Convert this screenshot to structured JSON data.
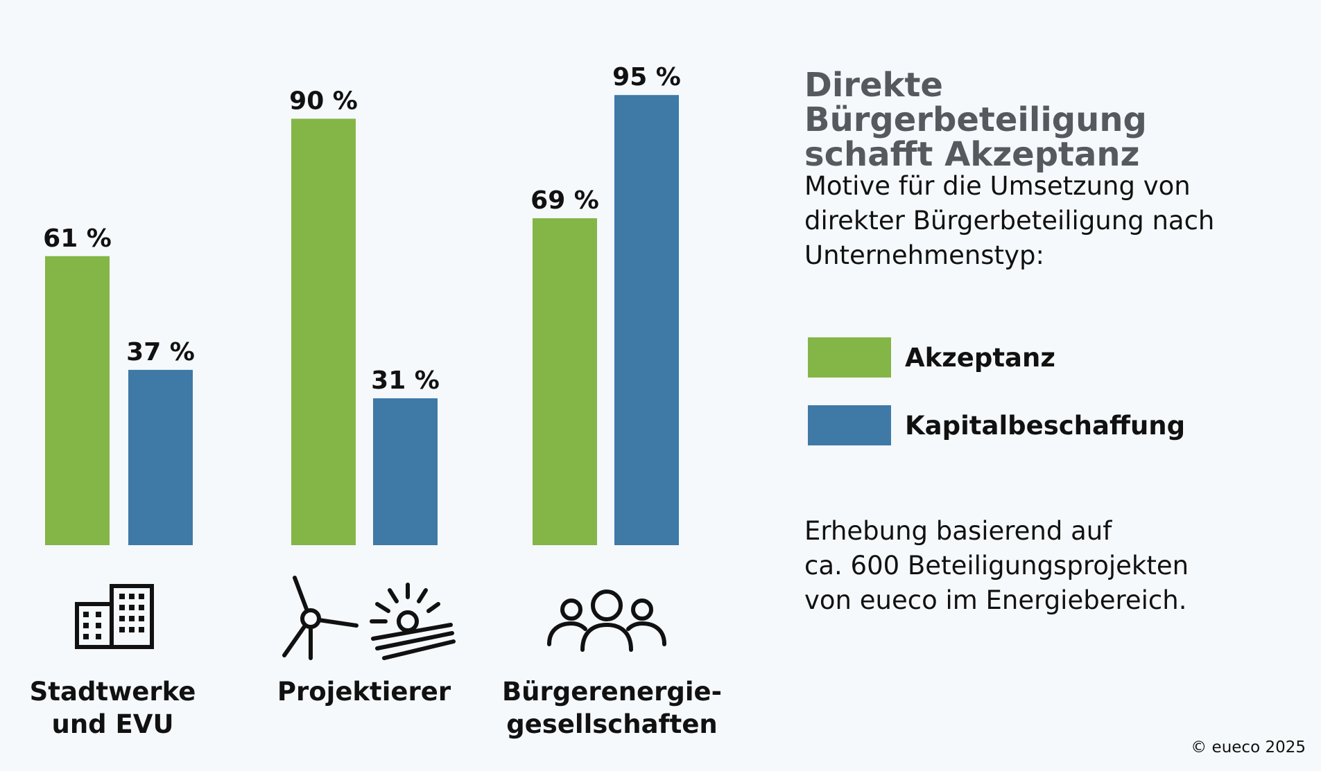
{
  "header": {
    "title": "Direkte Bürgerbeteiligung\nschafft Akzeptanz",
    "subtitle": "Motive für die Umsetzung von\ndirekter Bürgerbeteiligung nach\nUnternehmenstyp:"
  },
  "note": "Erhebung basierend auf\nca. 600 Beteiligungsprojekten\nvon eueco im Energiebereich.",
  "copyright": "© eueco 2025",
  "icons": [
    "office-building-icon",
    "wind-turbine-icon",
    "solar-panel-icon",
    "people-group-icon"
  ],
  "colors": {
    "akzeptanz": "#84b547",
    "kapitalbeschaffung": "#3f79a6",
    "background": "#f5f9fc"
  },
  "chart_data": {
    "type": "bar",
    "categories": [
      "Stadtwerke\nund EVU",
      "Projektierer",
      "Bürgerenergie-\ngesellschaften"
    ],
    "series": [
      {
        "name": "Akzeptanz",
        "values": [
          61,
          90,
          69
        ],
        "labels": [
          "61 %",
          "90 %",
          "69 %"
        ],
        "color": "#84b547"
      },
      {
        "name": "Kapitalbeschaffung",
        "values": [
          37,
          31,
          95
        ],
        "labels": [
          "37 %",
          "31 %",
          "95 %"
        ],
        "color": "#3f79a6"
      }
    ],
    "ylim": [
      0,
      100
    ],
    "legend": "right",
    "grid": false
  }
}
